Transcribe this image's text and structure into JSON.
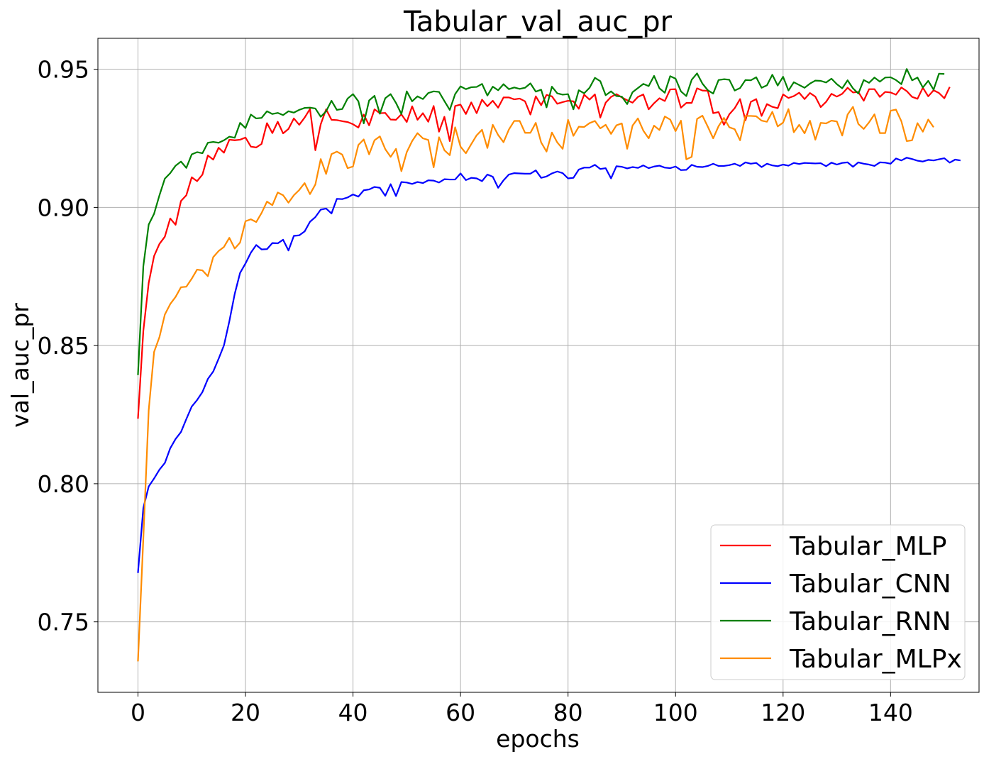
{
  "chart_data": {
    "type": "line",
    "title": "Tabular_val_auc_pr",
    "xlabel": "epochs",
    "ylabel": "val_auc_pr",
    "xlim": [
      -7.45,
      156.45
    ],
    "ylim": [
      0.7245,
      0.9612
    ],
    "xticks": [
      0,
      20,
      40,
      60,
      80,
      100,
      120,
      140
    ],
    "yticks": [
      0.75,
      0.8,
      0.85,
      0.9,
      0.95
    ],
    "ytick_labels": [
      "0.75",
      "0.80",
      "0.85",
      "0.90",
      "0.95"
    ],
    "grid": true,
    "legend_position": "lower-right",
    "x_start": 0,
    "x_step": 1,
    "series": [
      {
        "name": "Tabular_MLP",
        "color": "#ff0000",
        "values": [
          0.8235,
          0.8553,
          0.8727,
          0.8824,
          0.8868,
          0.8894,
          0.896,
          0.8937,
          0.9023,
          0.9044,
          0.9109,
          0.9095,
          0.9119,
          0.9188,
          0.9173,
          0.9216,
          0.9198,
          0.9245,
          0.9243,
          0.9245,
          0.9253,
          0.922,
          0.9217,
          0.923,
          0.9305,
          0.9269,
          0.931,
          0.9268,
          0.9284,
          0.9322,
          0.9299,
          0.9325,
          0.9356,
          0.9207,
          0.9301,
          0.9355,
          0.9317,
          0.9316,
          0.9312,
          0.9309,
          0.9301,
          0.9289,
          0.9336,
          0.9297,
          0.9355,
          0.9341,
          0.9342,
          0.9318,
          0.9317,
          0.9337,
          0.9309,
          0.9366,
          0.9317,
          0.9341,
          0.931,
          0.9367,
          0.9274,
          0.9328,
          0.924,
          0.9367,
          0.9372,
          0.9338,
          0.938,
          0.9341,
          0.939,
          0.9366,
          0.9386,
          0.9361,
          0.9398,
          0.9398,
          0.9391,
          0.9394,
          0.9384,
          0.9336,
          0.9402,
          0.937,
          0.9407,
          0.9402,
          0.9375,
          0.9381,
          0.9386,
          0.9384,
          0.9357,
          0.9408,
          0.939,
          0.9409,
          0.9325,
          0.9379,
          0.94,
          0.941,
          0.9398,
          0.9388,
          0.9379,
          0.94,
          0.9409,
          0.9355,
          0.9377,
          0.9395,
          0.9385,
          0.9427,
          0.9428,
          0.9361,
          0.9378,
          0.9378,
          0.9431,
          0.9423,
          0.9422,
          0.9341,
          0.9345,
          0.9299,
          0.9337,
          0.9359,
          0.9392,
          0.9315,
          0.9382,
          0.9392,
          0.9331,
          0.9374,
          0.9364,
          0.9359,
          0.9409,
          0.9396,
          0.9403,
          0.9415,
          0.9392,
          0.9414,
          0.9401,
          0.9363,
          0.9382,
          0.9411,
          0.9401,
          0.9411,
          0.9433,
          0.9416,
          0.9418,
          0.9386,
          0.9428,
          0.9428,
          0.94,
          0.9418,
          0.9416,
          0.9408,
          0.9434,
          0.9421,
          0.94,
          0.9393,
          0.9433,
          0.9402,
          0.9424,
          0.9414,
          0.9395,
          0.9436
        ]
      },
      {
        "name": "Tabular_CNN",
        "color": "#0000ff",
        "values": [
          0.7677,
          0.7912,
          0.799,
          0.8019,
          0.8051,
          0.8075,
          0.8128,
          0.8162,
          0.8187,
          0.8234,
          0.8279,
          0.8303,
          0.8332,
          0.8379,
          0.8406,
          0.8452,
          0.8501,
          0.8588,
          0.8687,
          0.8763,
          0.8797,
          0.8836,
          0.8864,
          0.8848,
          0.8849,
          0.8871,
          0.887,
          0.8883,
          0.8844,
          0.8897,
          0.8899,
          0.8913,
          0.8948,
          0.8965,
          0.8992,
          0.8996,
          0.8978,
          0.9031,
          0.903,
          0.9036,
          0.9047,
          0.9039,
          0.9062,
          0.9065,
          0.9074,
          0.9071,
          0.9042,
          0.9084,
          0.9041,
          0.9092,
          0.909,
          0.9085,
          0.9092,
          0.9088,
          0.9098,
          0.9097,
          0.909,
          0.9102,
          0.9101,
          0.9101,
          0.9123,
          0.9099,
          0.9107,
          0.9105,
          0.9095,
          0.9119,
          0.9111,
          0.9071,
          0.9098,
          0.9119,
          0.9124,
          0.9123,
          0.9122,
          0.9122,
          0.9134,
          0.9107,
          0.9112,
          0.9123,
          0.913,
          0.9124,
          0.9105,
          0.9107,
          0.9137,
          0.9144,
          0.9144,
          0.9154,
          0.9139,
          0.9142,
          0.9105,
          0.9149,
          0.9147,
          0.9141,
          0.9146,
          0.9143,
          0.9152,
          0.9142,
          0.9148,
          0.9151,
          0.9144,
          0.9142,
          0.9148,
          0.9135,
          0.9136,
          0.9154,
          0.9147,
          0.9146,
          0.915,
          0.9158,
          0.915,
          0.915,
          0.9153,
          0.9158,
          0.915,
          0.9163,
          0.9158,
          0.9161,
          0.9146,
          0.9158,
          0.9152,
          0.9149,
          0.9155,
          0.9151,
          0.9161,
          0.9157,
          0.9161,
          0.916,
          0.9159,
          0.916,
          0.9149,
          0.9162,
          0.9155,
          0.9161,
          0.9163,
          0.9147,
          0.9163,
          0.9158,
          0.9155,
          0.915,
          0.9163,
          0.9162,
          0.9158,
          0.9177,
          0.917,
          0.918,
          0.9175,
          0.9169,
          0.9166,
          0.9172,
          0.917,
          0.9174,
          0.9178,
          0.9162,
          0.9173,
          0.917
        ]
      },
      {
        "name": "Tabular_RNN",
        "color": "#008000",
        "values": [
          0.8393,
          0.8787,
          0.8938,
          0.8977,
          0.9044,
          0.9104,
          0.9124,
          0.9151,
          0.9166,
          0.9143,
          0.9192,
          0.92,
          0.9196,
          0.9234,
          0.9237,
          0.9234,
          0.9243,
          0.9256,
          0.9252,
          0.9306,
          0.9287,
          0.9336,
          0.9322,
          0.9324,
          0.9348,
          0.9338,
          0.9342,
          0.9334,
          0.9348,
          0.9343,
          0.9353,
          0.936,
          0.9361,
          0.9358,
          0.9328,
          0.9348,
          0.9386,
          0.9353,
          0.9356,
          0.9394,
          0.941,
          0.9384,
          0.9304,
          0.9387,
          0.9404,
          0.9339,
          0.9395,
          0.941,
          0.9378,
          0.9338,
          0.942,
          0.9384,
          0.9402,
          0.9392,
          0.9414,
          0.942,
          0.9418,
          0.9385,
          0.9353,
          0.941,
          0.9438,
          0.9428,
          0.9435,
          0.9436,
          0.9447,
          0.9405,
          0.9437,
          0.9424,
          0.9446,
          0.9428,
          0.9434,
          0.9429,
          0.9433,
          0.9449,
          0.9419,
          0.9426,
          0.9362,
          0.9437,
          0.9413,
          0.9408,
          0.941,
          0.9355,
          0.9424,
          0.9413,
          0.9433,
          0.9469,
          0.9457,
          0.9406,
          0.942,
          0.9403,
          0.9401,
          0.9374,
          0.9417,
          0.9432,
          0.9447,
          0.9439,
          0.9476,
          0.9431,
          0.9415,
          0.9475,
          0.9466,
          0.942,
          0.9403,
          0.9462,
          0.9485,
          0.9448,
          0.9424,
          0.9412,
          0.9461,
          0.9464,
          0.9462,
          0.9423,
          0.9432,
          0.9461,
          0.946,
          0.9471,
          0.9433,
          0.9442,
          0.948,
          0.9441,
          0.9473,
          0.9423,
          0.9453,
          0.9443,
          0.9433,
          0.9448,
          0.9459,
          0.9458,
          0.9452,
          0.9466,
          0.9446,
          0.9431,
          0.946,
          0.9431,
          0.9412,
          0.9461,
          0.9451,
          0.947,
          0.9455,
          0.947,
          0.9471,
          0.9461,
          0.9446,
          0.9501,
          0.946,
          0.947,
          0.9434,
          0.9458,
          0.9426,
          0.9484,
          0.9483
        ]
      },
      {
        "name": "Tabular_MLPx",
        "color": "#ff8c00",
        "values": [
          0.7357,
          0.7802,
          0.8266,
          0.8477,
          0.8531,
          0.8612,
          0.865,
          0.8676,
          0.8711,
          0.8713,
          0.8742,
          0.8775,
          0.8772,
          0.8751,
          0.882,
          0.8842,
          0.8857,
          0.889,
          0.8851,
          0.8873,
          0.895,
          0.8957,
          0.8947,
          0.898,
          0.9021,
          0.9008,
          0.9054,
          0.9044,
          0.9017,
          0.9044,
          0.9063,
          0.9088,
          0.9048,
          0.9083,
          0.9175,
          0.9121,
          0.9193,
          0.9202,
          0.9191,
          0.9142,
          0.9148,
          0.9226,
          0.9246,
          0.9192,
          0.9243,
          0.9257,
          0.9211,
          0.9183,
          0.9212,
          0.9131,
          0.92,
          0.924,
          0.9269,
          0.925,
          0.9244,
          0.9145,
          0.9254,
          0.9207,
          0.9189,
          0.929,
          0.922,
          0.9196,
          0.9229,
          0.9261,
          0.9281,
          0.9215,
          0.9299,
          0.9262,
          0.9236,
          0.9282,
          0.9313,
          0.9313,
          0.927,
          0.927,
          0.9306,
          0.9235,
          0.9202,
          0.9271,
          0.9235,
          0.9212,
          0.9317,
          0.9259,
          0.9292,
          0.9291,
          0.9305,
          0.9313,
          0.9286,
          0.9299,
          0.9266,
          0.9297,
          0.9304,
          0.9212,
          0.9296,
          0.9322,
          0.9278,
          0.925,
          0.9296,
          0.928,
          0.9329,
          0.9318,
          0.9276,
          0.9314,
          0.9174,
          0.9183,
          0.932,
          0.9332,
          0.9292,
          0.925,
          0.9294,
          0.9324,
          0.929,
          0.9283,
          0.9243,
          0.9331,
          0.9331,
          0.933,
          0.9314,
          0.931,
          0.9346,
          0.9293,
          0.9307,
          0.9356,
          0.9272,
          0.9299,
          0.9268,
          0.9314,
          0.9245,
          0.9306,
          0.9304,
          0.9314,
          0.9311,
          0.926,
          0.9336,
          0.9364,
          0.9302,
          0.9284,
          0.9308,
          0.9337,
          0.9269,
          0.9269,
          0.935,
          0.9354,
          0.9312,
          0.924,
          0.9243,
          0.9305,
          0.9274,
          0.9318,
          0.929
        ]
      }
    ]
  }
}
